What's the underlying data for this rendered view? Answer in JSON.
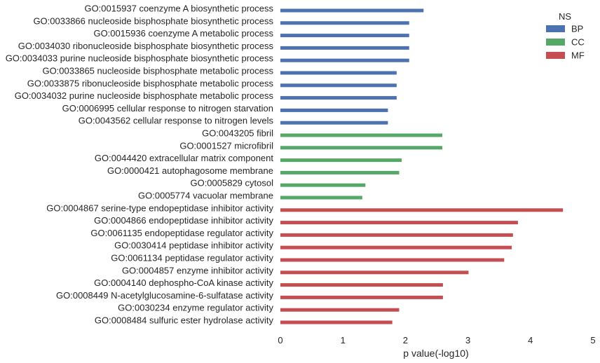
{
  "chart_data": {
    "type": "bar",
    "orientation": "horizontal",
    "xlabel": "p value(-log10)",
    "ylabel": "",
    "xlim": [
      0,
      5
    ],
    "xticks": [
      0,
      1,
      2,
      3,
      4,
      5
    ],
    "grid": false,
    "legend": {
      "title": "NS",
      "placement": "top-right",
      "entries": [
        {
          "name": "BP",
          "color": "#4c72b0"
        },
        {
          "name": "CC",
          "color": "#55a868"
        },
        {
          "name": "MF",
          "color": "#c44e52"
        }
      ]
    },
    "categories": [
      "GO:0015937 coenzyme A biosynthetic process",
      "GO:0033866 nucleoside bisphosphate biosynthetic process",
      "GO:0015936 coenzyme A metabolic process",
      "GO:0034030 ribonucleoside bisphosphate biosynthetic process",
      "GO:0034033 purine nucleoside bisphosphate biosynthetic process",
      "GO:0033865 nucleoside bisphosphate metabolic process",
      "GO:0033875 ribonucleoside bisphosphate metabolic process",
      "GO:0034032 purine nucleoside bisphosphate metabolic process",
      "GO:0006995 cellular response to nitrogen starvation",
      "GO:0043562 cellular response to nitrogen levels",
      "GO:0043205 fibril",
      "GO:0001527 microfibril",
      "GO:0044420 extracellular matrix component",
      "GO:0000421 autophagosome membrane",
      "GO:0005829 cytosol",
      "GO:0005774 vacuolar membrane",
      "GO:0004867 serine-type endopeptidase inhibitor activity",
      "GO:0004866 endopeptidase inhibitor activity",
      "GO:0061135 endopeptidase regulator activity",
      "GO:0030414 peptidase inhibitor activity",
      "GO:0061134 peptidase regulator activity",
      "GO:0004857 enzyme inhibitor activity",
      "GO:0004140 dephospho-CoA kinase activity",
      "GO:0008449 N-acetylglucosamine-6-sulfatase activity",
      "GO:0030234 enzyme regulator activity",
      "GO:0008484 sulfuric ester hydrolase activity"
    ],
    "groups": [
      "BP",
      "BP",
      "BP",
      "BP",
      "BP",
      "BP",
      "BP",
      "BP",
      "BP",
      "BP",
      "CC",
      "CC",
      "CC",
      "CC",
      "CC",
      "CC",
      "MF",
      "MF",
      "MF",
      "MF",
      "MF",
      "MF",
      "MF",
      "MF",
      "MF",
      "MF"
    ],
    "values": [
      2.29,
      2.06,
      2.06,
      2.06,
      2.06,
      1.86,
      1.86,
      1.86,
      1.72,
      1.72,
      2.59,
      2.59,
      1.94,
      1.9,
      1.36,
      1.31,
      4.52,
      3.8,
      3.72,
      3.7,
      3.58,
      3.01,
      2.6,
      2.6,
      1.9,
      1.79
    ]
  }
}
